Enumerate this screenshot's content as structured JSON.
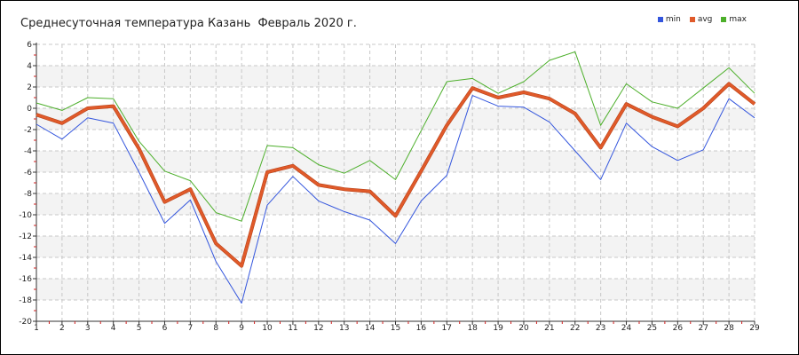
{
  "chart_data": {
    "type": "line",
    "title": "Среднесуточная температура Казань  Февраль 2020 г.",
    "x": [
      1,
      2,
      3,
      4,
      5,
      6,
      7,
      8,
      9,
      10,
      11,
      12,
      13,
      14,
      15,
      16,
      17,
      18,
      19,
      20,
      21,
      22,
      23,
      24,
      25,
      26,
      27,
      28,
      29
    ],
    "series": [
      {
        "name": "min",
        "color": "#3355dd",
        "width": 1,
        "values": [
          -1.5,
          -2.9,
          -0.9,
          -1.4,
          -6,
          -10.8,
          -8.6,
          -14.4,
          -18.3,
          -9.1,
          -6.4,
          -8.7,
          -9.7,
          -10.5,
          -12.7,
          -8.7,
          -6.3,
          1.2,
          0.2,
          0.1,
          -1.3,
          -4,
          -6.7,
          -1.4,
          -3.6,
          -4.9,
          -3.9,
          0.9,
          -0.9
        ]
      },
      {
        "name": "avg",
        "color": "#e05a2a",
        "width": 3,
        "values": [
          -0.6,
          -1.4,
          0,
          0.2,
          -3.8,
          -8.8,
          -7.6,
          -12.7,
          -14.8,
          -6,
          -5.4,
          -7.2,
          -7.6,
          -7.8,
          -10.1,
          -5.9,
          -1.6,
          1.9,
          1,
          1.5,
          0.9,
          -0.5,
          -3.7,
          0.4,
          -0.8,
          -1.7,
          0,
          2.3,
          0.4
        ]
      },
      {
        "name": "max",
        "color": "#4caf2a",
        "width": 1,
        "values": [
          0.5,
          -0.2,
          1,
          0.9,
          -3.1,
          -5.9,
          -6.8,
          -9.8,
          -10.6,
          -3.5,
          -3.7,
          -5.3,
          -6.1,
          -4.9,
          -6.7,
          -2.1,
          2.5,
          2.8,
          1.4,
          2.5,
          4.5,
          5.3,
          -1.6,
          2.3,
          0.6,
          0,
          1.9,
          3.8,
          1.4
        ]
      }
    ],
    "yticks": [
      6,
      4,
      2,
      0,
      -2,
      -4,
      -6,
      -8,
      -10,
      -12,
      -14,
      -16,
      -18,
      -20
    ],
    "ylim": [
      -20,
      6
    ],
    "xlim": [
      1,
      29
    ],
    "grid": true,
    "legend": "top-right"
  }
}
